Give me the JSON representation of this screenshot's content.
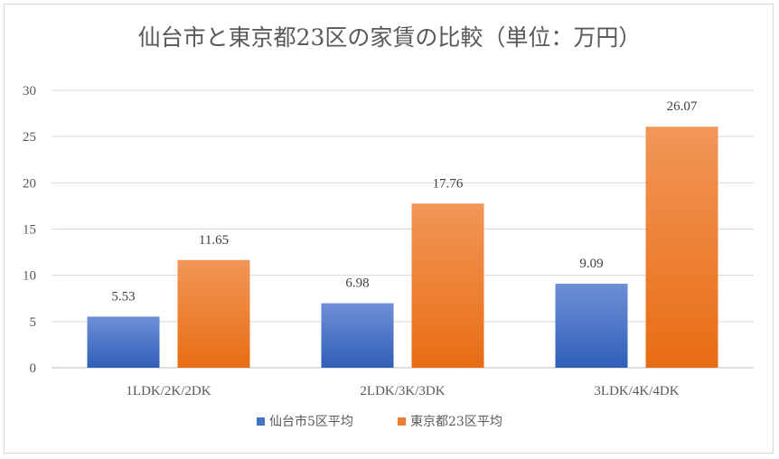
{
  "chart_data": {
    "type": "bar",
    "title": "仙台市と東京都23区の家賃の比較（単位：万円）",
    "xlabel": "",
    "ylabel": "",
    "categories": [
      "1LDK/2K/2DK",
      "2LDK/3K/3DK",
      "3LDK/4K/4DK"
    ],
    "series": [
      {
        "name": "仙台市5区平均",
        "values": [
          5.53,
          6.98,
          9.09
        ],
        "labels": [
          "5.53",
          "6.98",
          "9.09"
        ],
        "color": "#4472c4",
        "color_dark": "#2f5fb8",
        "color_light": "#6f8fd6"
      },
      {
        "name": "東京都23区平均",
        "values": [
          11.65,
          17.76,
          26.07
        ],
        "labels": [
          "11.65",
          "17.76",
          "26.07"
        ],
        "color": "#ed7d31",
        "color_dark": "#e86d14",
        "color_light": "#f29658"
      }
    ],
    "ylim": [
      0,
      30
    ],
    "yticks": [
      0,
      5,
      10,
      15,
      20,
      25,
      30
    ],
    "ytick_labels": [
      "0",
      "5",
      "10",
      "15",
      "20",
      "25",
      "30"
    ],
    "grid": true,
    "legend_position": "bottom"
  }
}
